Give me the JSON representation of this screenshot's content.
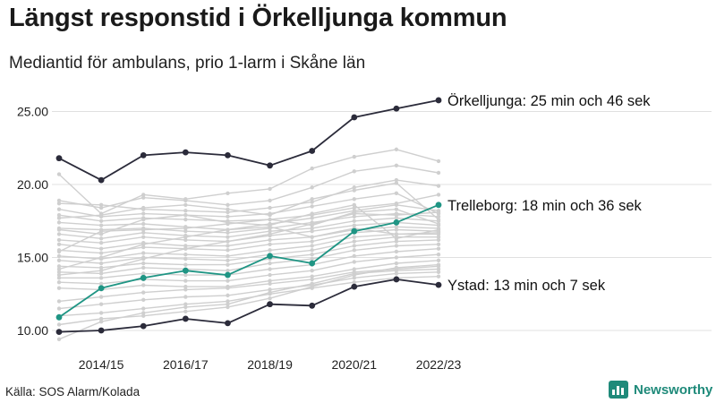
{
  "header": {
    "title": "Längst responstid i Örkelljunga kommun",
    "subtitle": "Mediantid för ambulans, prio 1-larm i Skåne län"
  },
  "footer": {
    "source": "Källa: SOS Alarm/Kolada",
    "brand": "Newsworthy"
  },
  "colors": {
    "highlight_dark": "#2b2b3a",
    "highlight_teal": "#1f9584",
    "background_lines": "#cfcfcf",
    "gridline": "#e0e0e0"
  },
  "chart_data": {
    "type": "line",
    "x": [
      "2013/14",
      "2014/15",
      "2015/16",
      "2016/17",
      "2017/18",
      "2018/19",
      "2019/20",
      "2020/21",
      "2021/22",
      "2022/23"
    ],
    "x_tick_labels": [
      "2014/15",
      "2016/17",
      "2018/19",
      "2020/21",
      "2022/23"
    ],
    "y_ticks": [
      "10.00",
      "15.00",
      "20.00",
      "25.00"
    ],
    "ylim": [
      9.5,
      26.5
    ],
    "grid": true,
    "highlighted_series": [
      {
        "name": "Örkelljunga",
        "label": "Örkelljunga: 25 min och 46 sek",
        "color": "#2b2b3a",
        "values": [
          21.8,
          20.3,
          22.0,
          22.2,
          22.0,
          21.3,
          22.3,
          24.6,
          25.2,
          25.77
        ]
      },
      {
        "name": "Trelleborg",
        "label": "Trelleborg: 18 min och 36 sek",
        "color": "#1f9584",
        "values": [
          10.9,
          12.9,
          13.6,
          14.1,
          13.8,
          15.1,
          14.6,
          16.8,
          17.4,
          18.6
        ]
      },
      {
        "name": "Ystad",
        "label": "Ystad: 13 min och 7 sek",
        "color": "#2b2b3a",
        "values": [
          9.9,
          10.0,
          10.3,
          10.8,
          10.5,
          11.8,
          11.7,
          13.0,
          13.5,
          13.12
        ]
      }
    ],
    "background_series": [
      [
        20.7,
        18.0,
        19.3,
        19.0,
        19.4,
        19.7,
        21.1,
        21.9,
        22.4,
        21.6
      ],
      [
        18.9,
        18.4,
        19.1,
        18.9,
        18.6,
        18.9,
        19.8,
        20.9,
        21.3,
        20.8
      ],
      [
        18.7,
        18.6,
        18.3,
        18.2,
        18.1,
        18.4,
        18.8,
        19.8,
        20.3,
        19.9
      ],
      [
        18.3,
        17.8,
        18.0,
        17.9,
        17.8,
        18.0,
        18.5,
        19.0,
        19.4,
        18.0
      ],
      [
        17.9,
        17.5,
        17.7,
        17.6,
        17.5,
        17.6,
        17.9,
        18.4,
        18.7,
        19.3
      ],
      [
        17.4,
        17.2,
        17.3,
        17.1,
        16.9,
        17.3,
        17.7,
        18.2,
        18.6,
        18.2
      ],
      [
        17.0,
        16.9,
        17.0,
        16.8,
        16.7,
        17.0,
        17.4,
        17.8,
        18.0,
        17.8
      ],
      [
        16.6,
        16.3,
        16.7,
        16.5,
        16.4,
        16.8,
        17.0,
        17.5,
        17.7,
        17.5
      ],
      [
        16.2,
        16.0,
        16.4,
        16.2,
        16.1,
        16.5,
        16.8,
        17.2,
        17.4,
        17.2
      ],
      [
        15.9,
        15.6,
        16.0,
        15.8,
        15.8,
        16.2,
        16.4,
        16.9,
        17.1,
        17.0
      ],
      [
        15.5,
        15.3,
        15.7,
        15.6,
        15.5,
        15.9,
        16.1,
        16.7,
        16.9,
        16.8
      ],
      [
        15.1,
        14.9,
        15.3,
        15.2,
        15.1,
        15.5,
        15.8,
        16.4,
        16.6,
        16.6
      ],
      [
        14.8,
        14.6,
        15.0,
        14.9,
        14.8,
        15.2,
        15.5,
        16.1,
        16.4,
        16.4
      ],
      [
        14.4,
        14.3,
        14.6,
        14.5,
        14.5,
        14.9,
        15.2,
        15.8,
        16.1,
        16.2
      ],
      [
        14.0,
        13.9,
        14.3,
        14.2,
        14.1,
        14.6,
        14.9,
        15.5,
        15.8,
        15.9
      ],
      [
        13.6,
        13.6,
        13.9,
        13.8,
        13.8,
        14.2,
        14.5,
        15.1,
        15.4,
        15.6
      ],
      [
        13.3,
        13.2,
        13.5,
        13.4,
        13.4,
        13.8,
        14.1,
        14.7,
        15.0,
        15.2
      ],
      [
        12.9,
        12.8,
        13.1,
        13.0,
        13.0,
        13.4,
        13.7,
        14.2,
        14.6,
        14.8
      ],
      [
        12.0,
        12.3,
        12.6,
        12.8,
        12.9,
        13.2,
        13.5,
        14.0,
        14.2,
        14.4
      ],
      [
        11.5,
        11.8,
        12.1,
        12.3,
        12.4,
        12.8,
        13.1,
        13.6,
        13.9,
        14.0
      ],
      [
        11.0,
        11.2,
        11.5,
        11.8,
        12.0,
        12.5,
        12.9,
        13.3,
        13.6,
        13.7
      ],
      [
        10.4,
        10.8,
        11.0,
        11.3,
        11.6,
        12.2,
        13.0,
        13.8,
        14.3,
        14.5
      ],
      [
        9.4,
        10.6,
        11.2,
        11.6,
        11.8,
        12.6,
        13.2,
        13.9,
        14.1,
        14.2
      ],
      [
        17.7,
        17.9,
        18.4,
        18.6,
        18.3,
        17.9,
        19.0,
        19.6,
        20.1,
        17.6
      ],
      [
        16.9,
        16.6,
        17.6,
        17.9,
        17.4,
        17.2,
        18.0,
        18.6,
        16.3,
        16.9
      ],
      [
        15.4,
        16.8,
        16.9,
        17.0,
        17.3,
        17.6,
        17.2,
        18.1,
        18.3,
        17.3
      ],
      [
        14.2,
        15.0,
        15.9,
        16.4,
        16.9,
        17.1,
        16.4,
        17.0,
        16.6,
        16.7
      ],
      [
        13.8,
        14.1,
        14.9,
        15.6,
        16.1,
        16.6,
        17.3,
        18.0,
        17.9,
        18.1
      ]
    ]
  }
}
